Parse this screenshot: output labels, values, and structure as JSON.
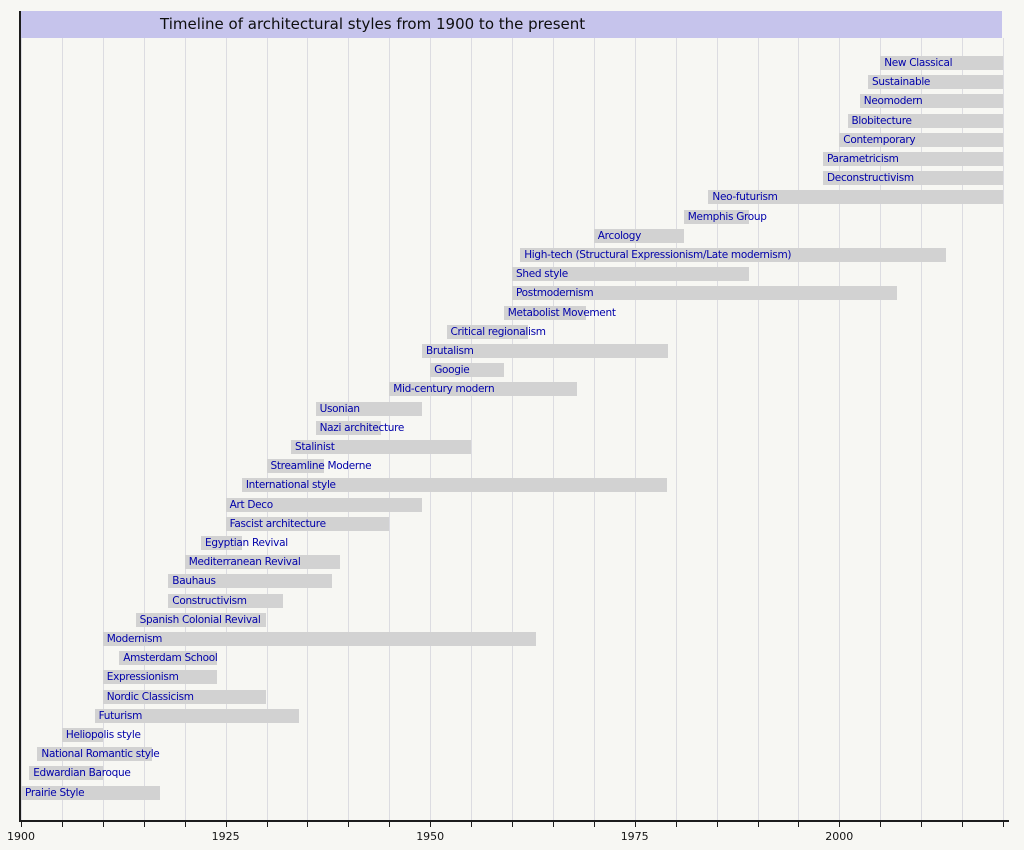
{
  "colors": {
    "background": "#f7f7f3",
    "banner": "#c6c4ec",
    "bar": "#d2d2d2",
    "bar_label": "#0000aa",
    "gridline": "#dcdce1",
    "axis": "#1c1c1c"
  },
  "chart_data": {
    "type": "bar",
    "variant": "horizontal-timeline-gantt",
    "title": "Timeline of architectural styles from 1900 to the present",
    "xlabel": "",
    "ylabel": "",
    "x_axis": {
      "min": 1900,
      "max": 2020,
      "grid_step": 5,
      "tick_step": 5,
      "tick_labels": [
        "1900",
        "1925",
        "1950",
        "1975",
        "2000"
      ],
      "tick_label_years": [
        1900,
        1925,
        1950,
        1975,
        2000
      ],
      "grid": true
    },
    "legend": null,
    "bars": [
      {
        "label": "New Classical",
        "start": 2005,
        "end": 2020
      },
      {
        "label": "Sustainable",
        "start": 2003.5,
        "end": 2020
      },
      {
        "label": "Neomodern",
        "start": 2002.5,
        "end": 2020
      },
      {
        "label": "Blobitecture",
        "start": 2001,
        "end": 2020
      },
      {
        "label": "Contemporary",
        "start": 2000,
        "end": 2020
      },
      {
        "label": "Parametricism",
        "start": 1998,
        "end": 2020
      },
      {
        "label": "Deconstructivism",
        "start": 1998,
        "end": 2020
      },
      {
        "label": "Neo-futurism",
        "start": 1984,
        "end": 2020
      },
      {
        "label": "Memphis Group",
        "start": 1981,
        "end": 1989
      },
      {
        "label": "Arcology",
        "start": 1970,
        "end": 1981
      },
      {
        "label": "High-tech (Structural Expressionism/Late modernism)",
        "start": 1961,
        "end": 2013
      },
      {
        "label": "Shed style",
        "start": 1960,
        "end": 1989
      },
      {
        "label": "Postmodernism",
        "start": 1960,
        "end": 2007
      },
      {
        "label": "Metabolist Movement",
        "start": 1959,
        "end": 1969
      },
      {
        "label": "Critical regionalism",
        "start": 1952,
        "end": 1962
      },
      {
        "label": "Brutalism",
        "start": 1949,
        "end": 1979
      },
      {
        "label": "Googie",
        "start": 1950,
        "end": 1959
      },
      {
        "label": "Mid-century modern",
        "start": 1945,
        "end": 1968
      },
      {
        "label": "Usonian",
        "start": 1936,
        "end": 1949
      },
      {
        "label": "Nazi architecture",
        "start": 1936,
        "end": 1944
      },
      {
        "label": "Stalinist",
        "start": 1933,
        "end": 1955
      },
      {
        "label": "Streamline Moderne",
        "start": 1930,
        "end": 1937
      },
      {
        "label": "International style",
        "start": 1927,
        "end": 1979
      },
      {
        "label": "Art Deco",
        "start": 1925,
        "end": 1949
      },
      {
        "label": "Fascist architecture",
        "start": 1925,
        "end": 1945
      },
      {
        "label": "Egyptian Revival",
        "start": 1922,
        "end": 1927
      },
      {
        "label": "Mediterranean Revival",
        "start": 1920,
        "end": 1939
      },
      {
        "label": "Bauhaus",
        "start": 1918,
        "end": 1938
      },
      {
        "label": "Constructivism",
        "start": 1918,
        "end": 1932
      },
      {
        "label": "Spanish Colonial Revival",
        "start": 1914,
        "end": 1930
      },
      {
        "label": "Modernism",
        "start": 1910,
        "end": 1963
      },
      {
        "label": "Amsterdam School",
        "start": 1912,
        "end": 1924
      },
      {
        "label": "Expressionism",
        "start": 1910,
        "end": 1924
      },
      {
        "label": "Nordic Classicism",
        "start": 1910,
        "end": 1930
      },
      {
        "label": "Futurism",
        "start": 1909,
        "end": 1934
      },
      {
        "label": "Heliopolis style",
        "start": 1905,
        "end": 1910
      },
      {
        "label": "National Romantic style",
        "start": 1902,
        "end": 1916
      },
      {
        "label": "Edwardian Baroque",
        "start": 1901,
        "end": 1910
      },
      {
        "label": "Prairie Style",
        "start": 1900,
        "end": 1917
      }
    ]
  }
}
